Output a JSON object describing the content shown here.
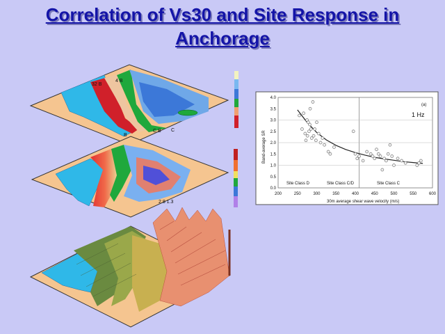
{
  "slide": {
    "title_line1": "Correlation of Vs30 and Site Response in",
    "title_line2": "Anchorage"
  },
  "colors": {
    "background": "#c9c9f6",
    "title": "#1414a8",
    "sea": "#2fb8e8",
    "land": "#f5c590",
    "green": "#1fa83c",
    "red": "#d0202a",
    "blue": "#3060d8"
  },
  "maps": {
    "top_labels": [
      "32 B",
      "4 B",
      "C B",
      "C",
      "B"
    ]
  },
  "chart_data": {
    "type": "scatter",
    "title": "",
    "annotation": "1 Hz",
    "panel_letter": "(a)",
    "xlabel": "30m average shear wave velocity (m/s)",
    "ylabel": "Band-average SR",
    "xlim": [
      200,
      600
    ],
    "ylim": [
      0,
      4
    ],
    "xticks": [
      "200",
      "250",
      "300",
      "350",
      "400",
      "450",
      "500",
      "550",
      "600"
    ],
    "yticks": [
      "0.0",
      "0.5",
      "1.0",
      "1.5",
      "2.0",
      "2.5",
      "3.0",
      "3.5",
      "4.0"
    ],
    "divider_x": 410,
    "regions": [
      "Site Class D",
      "Site Class C/D",
      "Site Class C"
    ],
    "points": {
      "x": [
        255,
        262,
        266,
        270,
        272,
        275,
        276,
        278,
        280,
        282,
        283,
        285,
        287,
        290,
        292,
        295,
        298,
        300,
        305,
        310,
        315,
        320,
        330,
        335,
        345,
        395,
        400,
        405,
        410,
        420,
        430,
        440,
        445,
        450,
        455,
        460,
        465,
        470,
        475,
        480,
        485,
        490,
        495,
        500,
        510,
        520,
        530,
        560,
        565,
        570
      ],
      "y": [
        3.2,
        2.6,
        3.3,
        2.4,
        2.1,
        3.0,
        2.3,
        2.9,
        2.5,
        2.8,
        3.5,
        2.6,
        2.2,
        3.8,
        2.3,
        2.6,
        2.1,
        2.9,
        2.4,
        2.0,
        2.2,
        1.9,
        1.6,
        1.5,
        1.8,
        2.5,
        1.5,
        1.3,
        1.4,
        1.2,
        1.6,
        1.5,
        1.4,
        1.3,
        1.7,
        1.5,
        1.4,
        0.8,
        1.3,
        1.2,
        1.5,
        1.9,
        1.4,
        1.0,
        1.3,
        1.2,
        1.1,
        1.0,
        1.1,
        1.2
      ]
    },
    "fit": {
      "x": [
        250,
        275,
        300,
        325,
        350,
        375,
        400,
        425,
        450,
        475,
        500,
        525,
        550,
        575
      ],
      "y": [
        3.45,
        2.9,
        2.45,
        2.12,
        1.88,
        1.7,
        1.56,
        1.45,
        1.35,
        1.28,
        1.22,
        1.16,
        1.12,
        1.08
      ]
    }
  }
}
